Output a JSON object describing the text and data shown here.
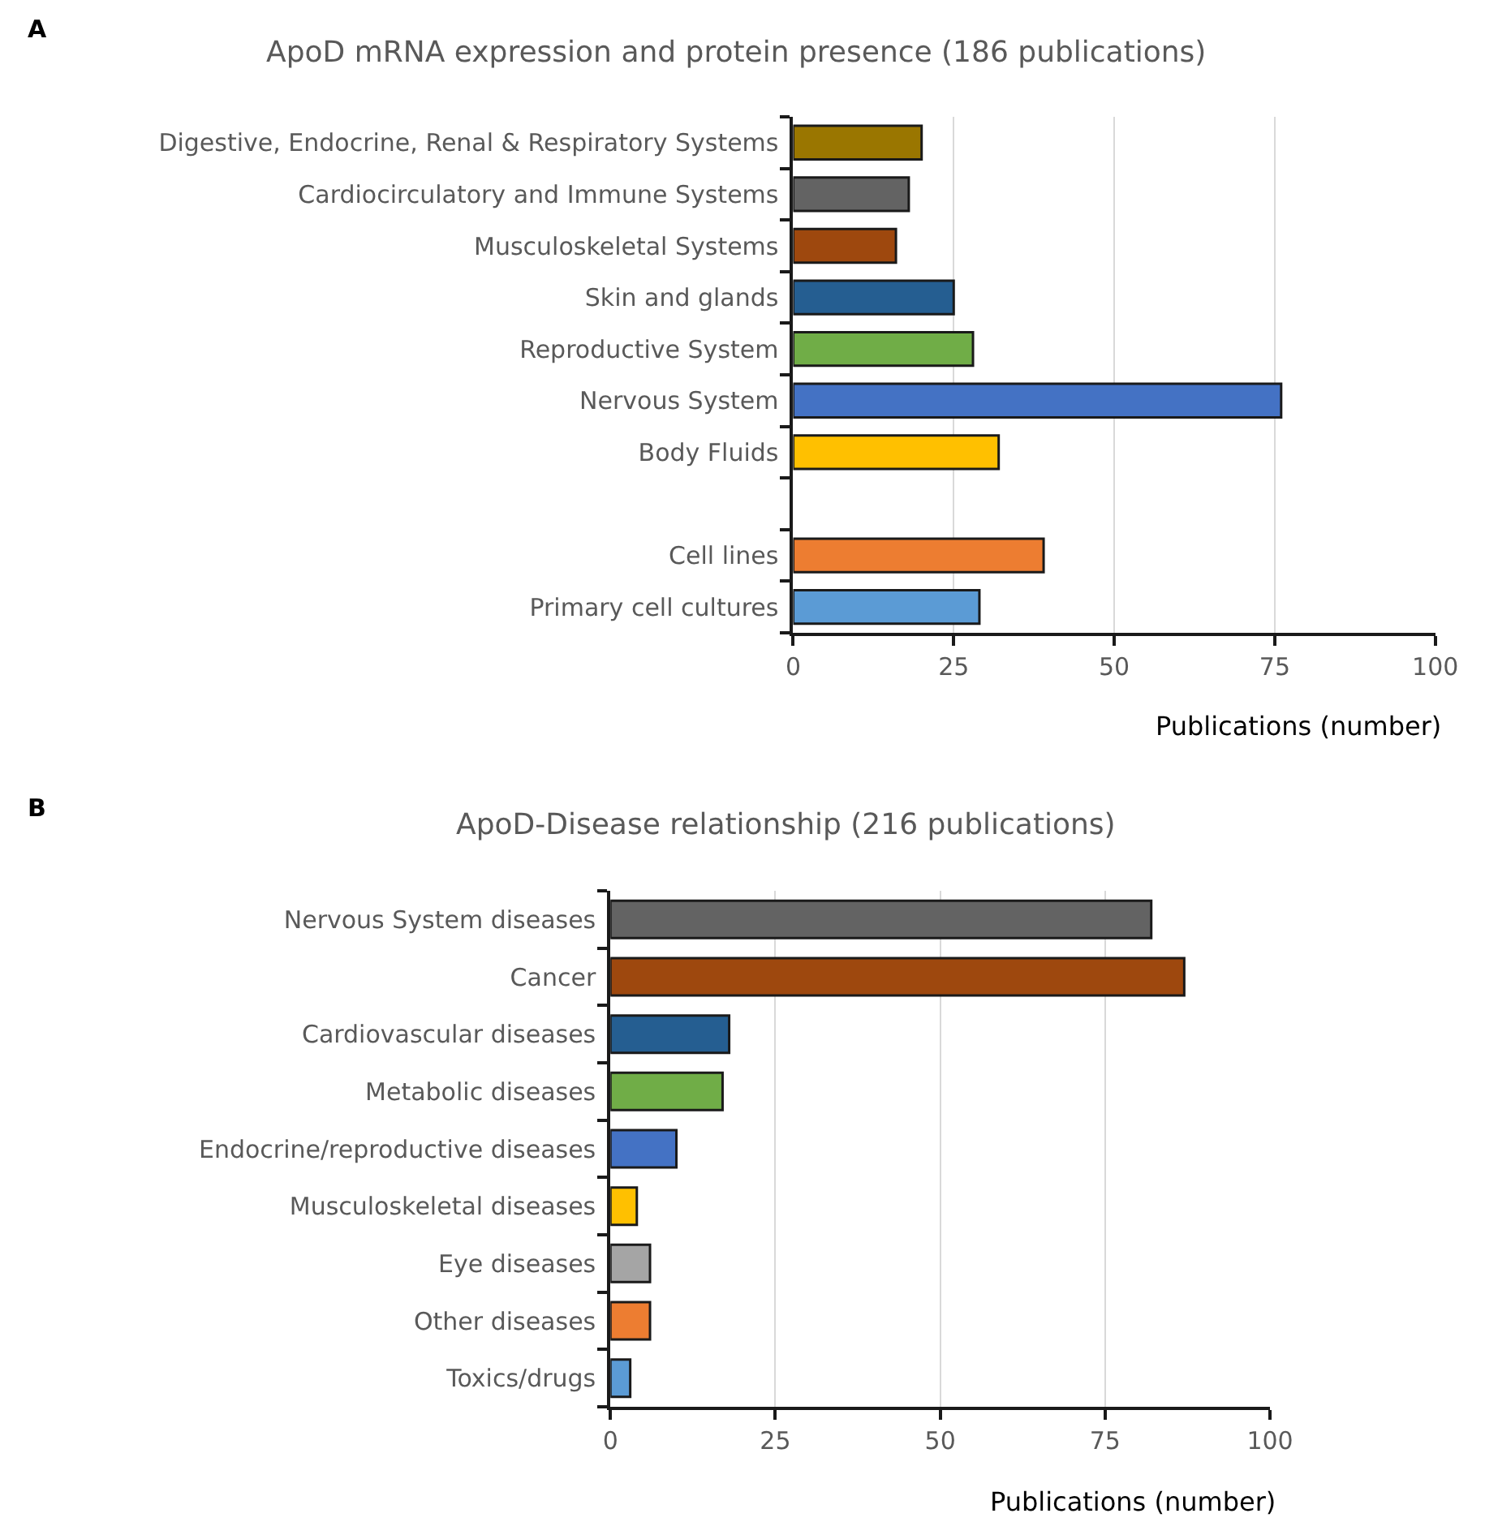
{
  "chart_data": [
    {
      "type": "bar",
      "orientation": "horizontal",
      "title": "ApoD mRNA expression and protein presence (186 publications)",
      "xlabel": "Publications (number)",
      "annotations": [
        "A"
      ],
      "categories": [
        "Digestive, Endocrine, Renal & Respiratory Systems",
        "Cardiocirculatory and Immune Systems",
        "Musculoskeletal Systems",
        "Skin and glands",
        "Reproductive System",
        "Nervous System",
        "Body Fluids",
        null,
        "Cell lines",
        "Primary cell cultures"
      ],
      "values": [
        20,
        18,
        16,
        25,
        28,
        76,
        32,
        null,
        39,
        29
      ],
      "colors": [
        "#9a7600",
        "#636363",
        "#9e480e",
        "#255e91",
        "#70ad47",
        "#4472c4",
        "#ffc000",
        "#ffffff",
        "#ed7d31",
        "#5b9bd5"
      ],
      "xlim": [
        0,
        100
      ],
      "xticks": [
        0,
        25,
        50,
        75,
        100
      ],
      "grid": "x"
    },
    {
      "type": "bar",
      "orientation": "horizontal",
      "title": "ApoD-Disease relationship (216 publications)",
      "xlabel": "Publications (number)",
      "annotations": [
        "B"
      ],
      "categories": [
        "Nervous System diseases",
        "Cancer",
        "Cardiovascular diseases",
        "Metabolic diseases",
        "Endocrine/reproductive diseases",
        "Musculoskeletal diseases",
        "Eye diseases",
        "Other diseases",
        "Toxics/drugs"
      ],
      "values": [
        82,
        87,
        18,
        17,
        10,
        4,
        6,
        6,
        3
      ],
      "colors": [
        "#636363",
        "#9e480e",
        "#255e91",
        "#70ad47",
        "#4472c4",
        "#ffc000",
        "#a5a5a5",
        "#ed7d31",
        "#5b9bd5"
      ],
      "xlim": [
        0,
        100
      ],
      "xticks": [
        0,
        25,
        50,
        75,
        100
      ],
      "grid": "x"
    }
  ]
}
